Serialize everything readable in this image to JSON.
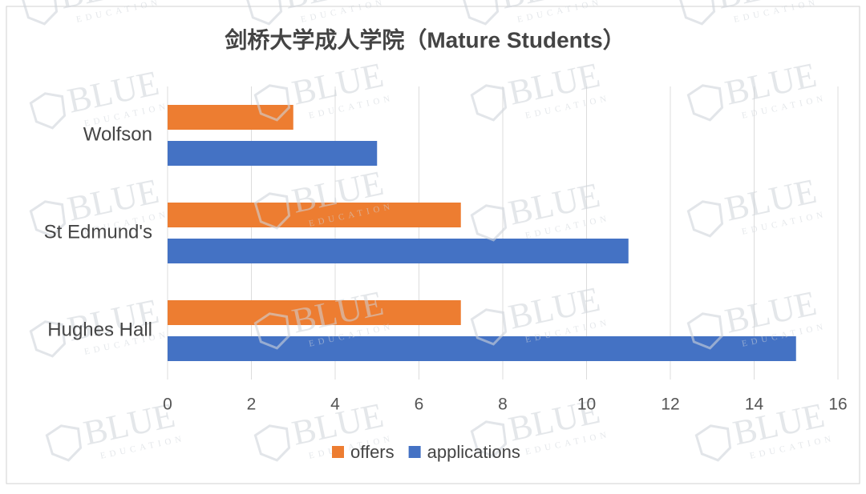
{
  "chart_data": {
    "type": "bar",
    "orientation": "horizontal",
    "title": "剑桥大学成人学院（Mature Students）",
    "categories": [
      "Wolfson",
      "St Edmund's",
      "Hughes Hall"
    ],
    "series": [
      {
        "name": "offers",
        "color": "#ed7d31",
        "values": [
          3,
          7,
          7
        ]
      },
      {
        "name": "applications",
        "color": "#4472c4",
        "values": [
          5,
          11,
          15
        ]
      }
    ],
    "xlim": [
      0,
      16
    ],
    "xticks": [
      0,
      2,
      4,
      6,
      8,
      10,
      12,
      14,
      16
    ],
    "grid": true,
    "legend": "bottom",
    "watermark": {
      "text": "BLUE",
      "subtext": "EDUCATION"
    }
  }
}
